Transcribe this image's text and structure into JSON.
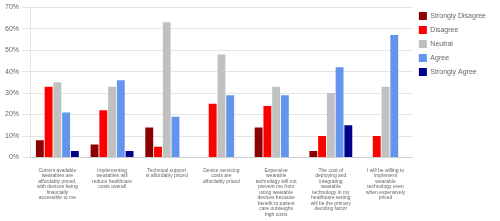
{
  "chart_data": {
    "type": "bar",
    "categories": [
      "Current available\nwearables are\naffordably priced,\nwith devices being\nfinancially\naccessible to me",
      "Implementing\nwearables will\nreduce healthcare\ncosts overall",
      "Technical support\nis affordably priced",
      "Device servicing\ncosts are\naffordably priced",
      "Expensive\nwearable\ntechnology will not\nprevent me from\nusing wearable\ndevices because\nbenefit to patient\ncare outweighs\nhigh costs",
      "The cost of\ndeploying and\nintegrating\nwearable\ntechnology in my\nhealthcare setting\nwill be the primary\ndeciding factor",
      "I will be willing to\nimplement\nwearable\ntechnology even\nwhen expensively\npriced"
    ],
    "series": [
      {
        "name": "Strongly Disagree",
        "color": "#8B0000",
        "values": [
          8,
          6,
          14,
          0,
          14,
          3,
          0
        ]
      },
      {
        "name": "Disagree",
        "color": "#FF0000",
        "values": [
          33,
          22,
          5,
          25,
          24,
          10,
          10
        ]
      },
      {
        "name": "Neutral",
        "color": "#C0C0C0",
        "values": [
          35,
          33,
          63,
          48,
          33,
          30,
          33
        ]
      },
      {
        "name": "Agree",
        "color": "#6495ED",
        "values": [
          21,
          36,
          19,
          29,
          29,
          42,
          57
        ]
      },
      {
        "name": "Strongly Agree",
        "color": "#00008B",
        "values": [
          3,
          3,
          0,
          0,
          0,
          15,
          0
        ]
      }
    ],
    "ylim": [
      0,
      70
    ],
    "yticks": [
      {
        "value": 0,
        "label": "0%"
      },
      {
        "value": 10,
        "label": "10%"
      },
      {
        "value": 20,
        "label": "20%"
      },
      {
        "value": 30,
        "label": "30%"
      },
      {
        "value": 40,
        "label": "40%"
      },
      {
        "value": 50,
        "label": "50%"
      },
      {
        "value": 60,
        "label": "60%"
      },
      {
        "value": 70,
        "label": "70%"
      }
    ],
    "grid": true,
    "legend": "right"
  }
}
